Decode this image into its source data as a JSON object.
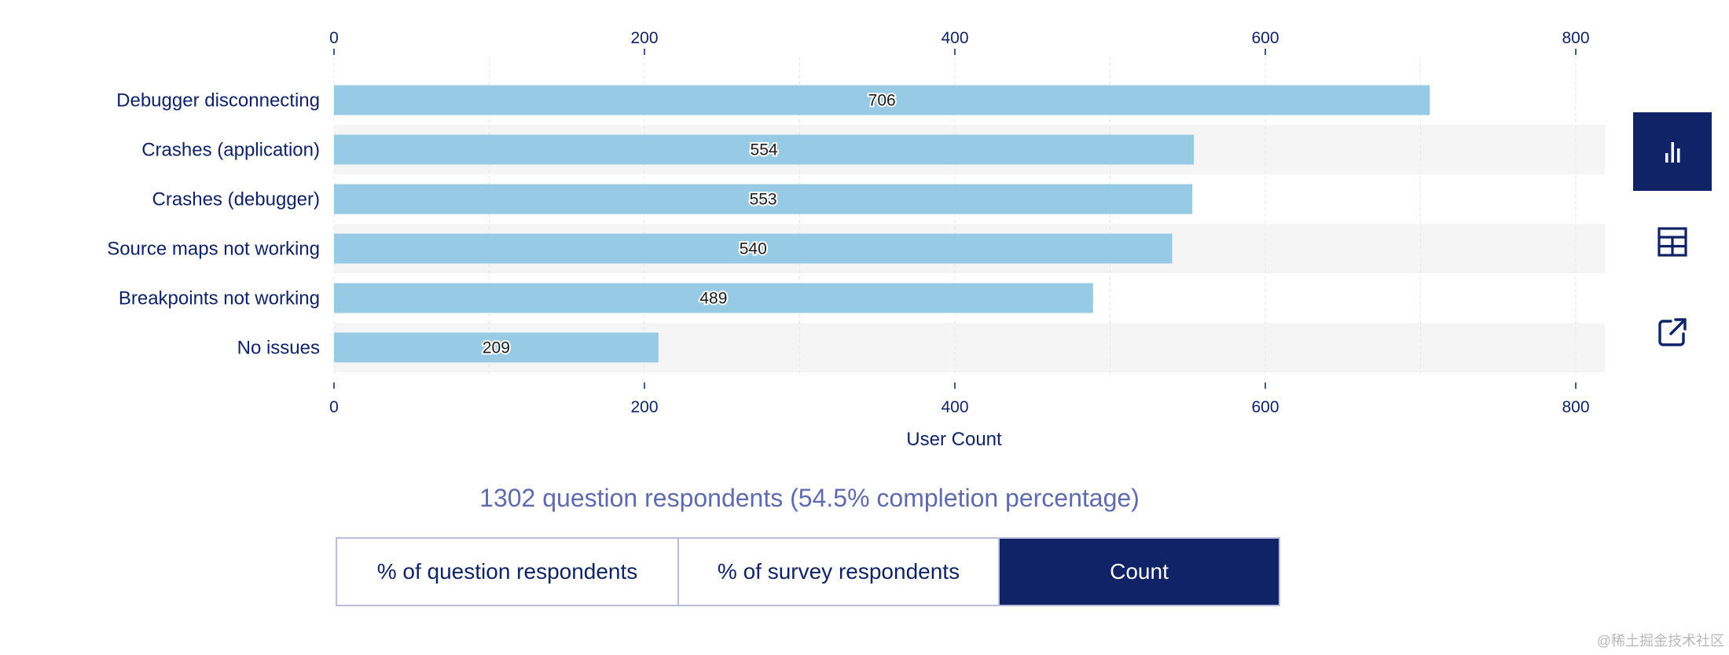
{
  "chart_data": {
    "type": "bar",
    "orientation": "horizontal",
    "categories": [
      "Debugger disconnecting",
      "Crashes (application)",
      "Crashes (debugger)",
      "Source maps not working",
      "Breakpoints not working",
      "No issues"
    ],
    "values": [
      706,
      554,
      553,
      540,
      489,
      209
    ],
    "xlabel": "User Count",
    "xlim": [
      0,
      820
    ],
    "xticks": [
      0,
      200,
      400,
      600,
      800
    ],
    "bar_color": "#97cbe5",
    "stripe_color": "#f5f5f5",
    "grid": true,
    "axis_position": "top-and-bottom"
  },
  "sidebar": {
    "buttons": [
      {
        "name": "chart-view-button",
        "icon": "bar-chart-icon",
        "active": true
      },
      {
        "name": "table-view-button",
        "icon": "table-icon",
        "active": false
      },
      {
        "name": "external-link-button",
        "icon": "external-link-icon",
        "active": false
      }
    ]
  },
  "summary": {
    "respondents_text": "1302 question respondents (54.5% completion percentage)"
  },
  "units_toggle": {
    "options": [
      "% of question respondents",
      "% of survey respondents",
      "Count"
    ],
    "selected": "Count"
  },
  "colors": {
    "navy": "#0f2366",
    "muted": "#5f6bae"
  },
  "watermark": "@稀土掘金技术社区"
}
